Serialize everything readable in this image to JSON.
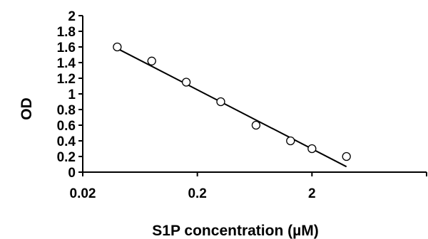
{
  "chart_data": {
    "type": "scatter",
    "xlabel": "S1P concentration (µM)",
    "ylabel": "OD",
    "x_scale": "log",
    "xlim": [
      0.02,
      20
    ],
    "ylim": [
      0,
      2
    ],
    "x_ticks": [
      {
        "value": 0.02,
        "label": "0.02"
      },
      {
        "value": 0.2,
        "label": "0.2"
      },
      {
        "value": 2,
        "label": "2"
      }
    ],
    "y_ticks": [
      {
        "value": 0,
        "label": "0"
      },
      {
        "value": 0.2,
        "label": "0.2"
      },
      {
        "value": 0.4,
        "label": "0.4"
      },
      {
        "value": 0.6,
        "label": "0.6"
      },
      {
        "value": 0.8,
        "label": "0.8"
      },
      {
        "value": 1,
        "label": "1"
      },
      {
        "value": 1.2,
        "label": "1.2"
      },
      {
        "value": 1.4,
        "label": "1.4"
      },
      {
        "value": 1.6,
        "label": "1.6"
      },
      {
        "value": 1.8,
        "label": "1.8"
      },
      {
        "value": 2,
        "label": "2"
      }
    ],
    "points": [
      {
        "x": 0.04,
        "y": 1.6
      },
      {
        "x": 0.08,
        "y": 1.42
      },
      {
        "x": 0.16,
        "y": 1.15
      },
      {
        "x": 0.32,
        "y": 0.9
      },
      {
        "x": 0.65,
        "y": 0.6
      },
      {
        "x": 1.3,
        "y": 0.4
      },
      {
        "x": 2.0,
        "y": 0.3
      },
      {
        "x": 4.0,
        "y": 0.2
      }
    ],
    "trendline": {
      "x": [
        0.04,
        4.0
      ],
      "y": [
        1.58,
        0.07
      ]
    },
    "grid": false,
    "legend": "none"
  }
}
